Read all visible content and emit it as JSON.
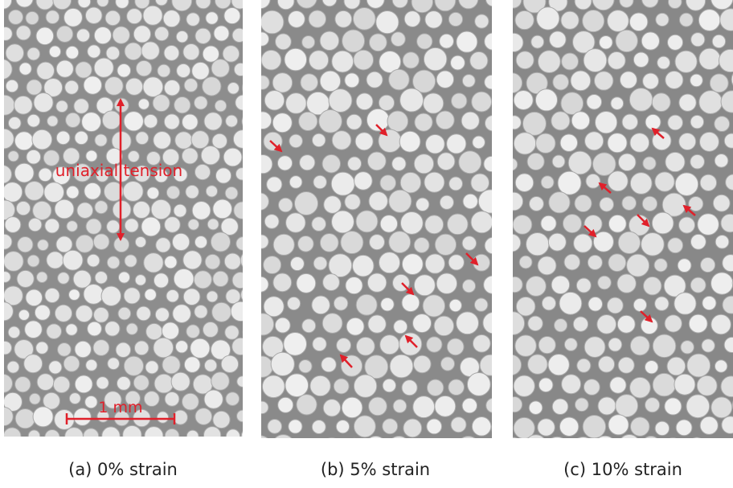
{
  "panels": [
    {
      "caption": "(a) 0% strain",
      "annotation": "uniaxial tension",
      "scale_bar": "1 mm"
    },
    {
      "caption": "(b) 5% strain"
    },
    {
      "caption": "(c) 10% strain"
    }
  ]
}
